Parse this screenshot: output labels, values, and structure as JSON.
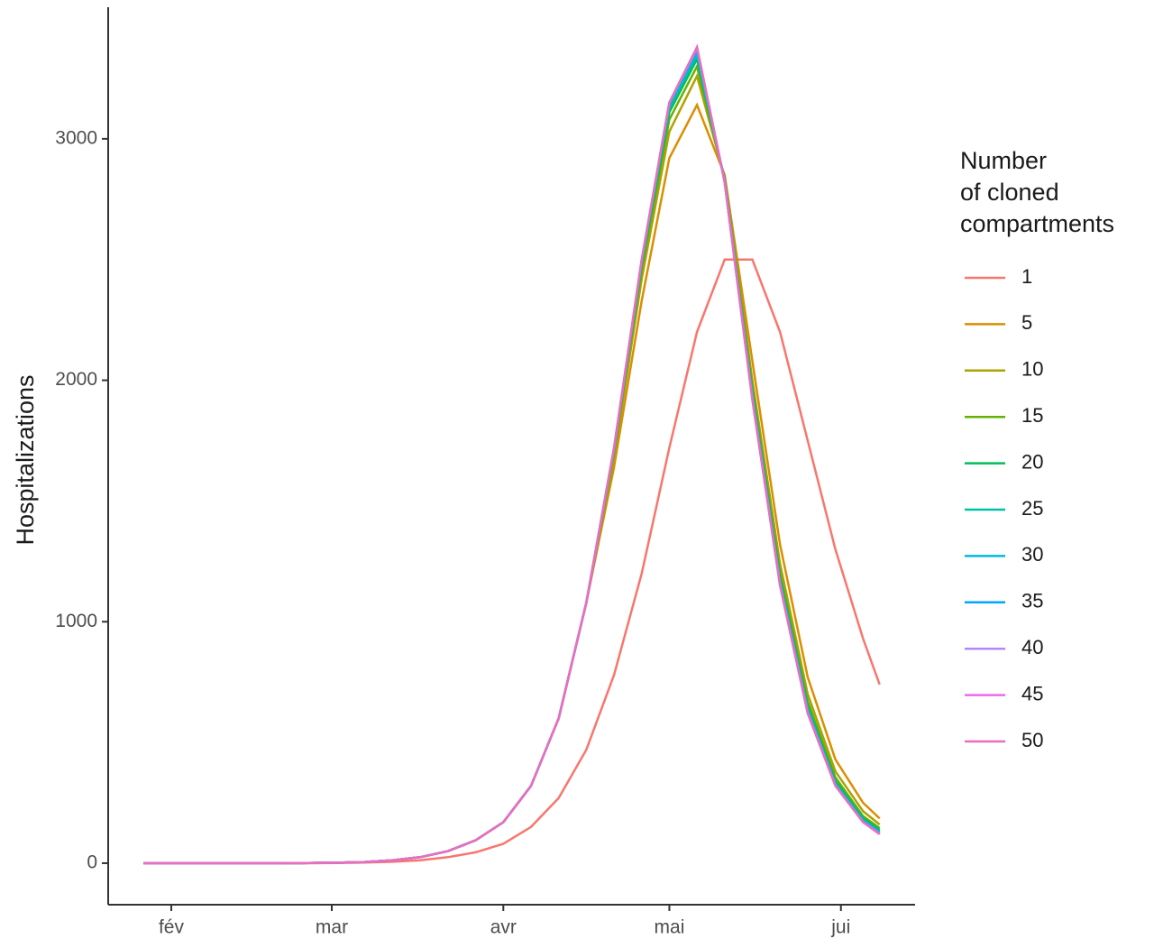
{
  "chart_data": {
    "type": "line",
    "y_label": "Hospitalizations",
    "legend_title": [
      "Number",
      "of cloned",
      "compartments"
    ],
    "legend_position": "right",
    "grid": false,
    "x": [
      -5,
      0,
      5,
      10,
      15,
      20,
      25,
      30,
      35,
      40,
      45,
      50,
      55,
      60,
      65,
      70,
      75,
      80,
      85,
      90,
      95,
      100,
      105,
      110,
      115,
      120,
      125,
      128
    ],
    "xlim": [
      -11.4,
      134.4
    ],
    "xticks": [
      {
        "value": 0,
        "label": "fév"
      },
      {
        "value": 29,
        "label": "mar"
      },
      {
        "value": 60,
        "label": "avr"
      },
      {
        "value": 90,
        "label": "mai"
      },
      {
        "value": 121,
        "label": "jui"
      }
    ],
    "ylim": [
      -172,
      3545
    ],
    "yticks": [
      0,
      1000,
      2000,
      3000
    ],
    "series": [
      {
        "name": "1",
        "color": "#F8766D",
        "values": [
          0,
          0,
          0,
          0,
          0,
          0,
          0,
          1,
          3,
          6,
          12,
          25,
          45,
          80,
          150,
          270,
          470,
          780,
          1200,
          1720,
          2200,
          2500,
          2500,
          2200,
          1750,
          1300,
          930,
          740
        ]
      },
      {
        "name": "5",
        "color": "#DB8E00",
        "values": [
          0,
          0,
          0,
          0,
          0,
          0,
          1,
          2,
          5,
          12,
          25,
          50,
          95,
          170,
          320,
          600,
          1080,
          1640,
          2330,
          2920,
          3140,
          2850,
          2080,
          1320,
          770,
          430,
          250,
          185
        ]
      },
      {
        "name": "10",
        "color": "#AEA200",
        "values": [
          0,
          0,
          0,
          0,
          0,
          0,
          1,
          2,
          5,
          12,
          25,
          50,
          95,
          170,
          320,
          600,
          1080,
          1680,
          2420,
          3030,
          3260,
          2840,
          2000,
          1240,
          700,
          380,
          215,
          160
        ]
      },
      {
        "name": "15",
        "color": "#64B200",
        "values": [
          0,
          0,
          0,
          0,
          0,
          0,
          1,
          2,
          5,
          12,
          25,
          50,
          95,
          170,
          320,
          600,
          1080,
          1700,
          2460,
          3080,
          3300,
          2835,
          1970,
          1200,
          670,
          355,
          195,
          145
        ]
      },
      {
        "name": "20",
        "color": "#00BD5C",
        "values": [
          0,
          0,
          0,
          0,
          0,
          0,
          1,
          2,
          5,
          12,
          25,
          50,
          95,
          170,
          320,
          600,
          1080,
          1710,
          2480,
          3110,
          3330,
          2830,
          1950,
          1180,
          650,
          340,
          185,
          138
        ]
      },
      {
        "name": "25",
        "color": "#00C1A7",
        "values": [
          0,
          0,
          0,
          0,
          0,
          0,
          1,
          2,
          5,
          12,
          25,
          50,
          95,
          170,
          320,
          600,
          1080,
          1715,
          2490,
          3130,
          3345,
          2826,
          1940,
          1170,
          640,
          332,
          180,
          132
        ]
      },
      {
        "name": "30",
        "color": "#00BADE",
        "values": [
          0,
          0,
          0,
          0,
          0,
          0,
          1,
          2,
          5,
          12,
          25,
          50,
          95,
          170,
          320,
          600,
          1080,
          1718,
          2495,
          3140,
          3360,
          2824,
          1932,
          1163,
          633,
          327,
          176,
          128
        ]
      },
      {
        "name": "35",
        "color": "#00A6FF",
        "values": [
          0,
          0,
          0,
          0,
          0,
          0,
          1,
          2,
          5,
          12,
          25,
          50,
          95,
          170,
          320,
          600,
          1080,
          1719,
          2498,
          3145,
          3370,
          2822,
          1926,
          1157,
          628,
          324,
          173,
          125
        ]
      },
      {
        "name": "40",
        "color": "#B385FF",
        "values": [
          0,
          0,
          0,
          0,
          0,
          0,
          1,
          2,
          5,
          12,
          25,
          50,
          95,
          170,
          320,
          600,
          1080,
          1720,
          2500,
          3148,
          3375,
          2821,
          1923,
          1154,
          625,
          322,
          171,
          123
        ]
      },
      {
        "name": "45",
        "color": "#EF67EB",
        "values": [
          0,
          0,
          0,
          0,
          0,
          0,
          1,
          2,
          5,
          12,
          25,
          50,
          95,
          170,
          320,
          600,
          1080,
          1720,
          2500,
          3150,
          3378,
          2820,
          1921,
          1152,
          622,
          321,
          170,
          121
        ]
      },
      {
        "name": "50",
        "color": "#E86FBF",
        "values": [
          0,
          0,
          0,
          0,
          0,
          0,
          1,
          2,
          5,
          12,
          25,
          50,
          95,
          170,
          320,
          600,
          1080,
          1720,
          2500,
          3150,
          3380,
          2820,
          1920,
          1150,
          620,
          320,
          170,
          120
        ]
      }
    ]
  }
}
